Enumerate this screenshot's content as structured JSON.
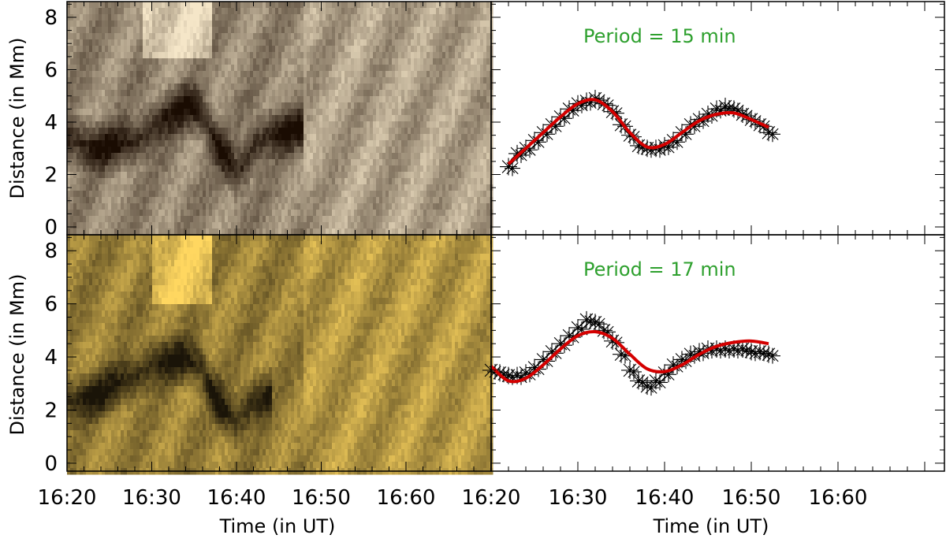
{
  "figure": {
    "xlabel": "Time (in UT)",
    "ylabel": "Distance (in Mm)",
    "x_ticks": [
      "16:20",
      "16:30",
      "16:40",
      "16:50",
      "16:60"
    ],
    "y_ticks": [
      "0",
      "2",
      "4",
      "6",
      "8"
    ],
    "colors": {
      "text": "#000000",
      "fit_line": "#d40000",
      "annotation": "#2ea02e",
      "marker": "#000000",
      "top_map_dark": "#1a0c02",
      "top_map_light": "#f5e6c8",
      "bottom_map_dark": "#1a1408",
      "bottom_map_light": "#ffd760"
    }
  },
  "chart_data": [
    {
      "type": "heatmap",
      "panel": "top-left",
      "colormap": "brown",
      "xlim": [
        0,
        50
      ],
      "ylim": [
        -0.3,
        8.6
      ],
      "xlabel": "",
      "ylabel": "Distance (in Mm)",
      "dark_track": [
        [
          0,
          3.3
        ],
        [
          4,
          3.0
        ],
        [
          8,
          3.2
        ],
        [
          10,
          3.8
        ],
        [
          12,
          4.3
        ],
        [
          14,
          4.6
        ],
        [
          16,
          4.3
        ],
        [
          17,
          3.6
        ],
        [
          18,
          3.0
        ],
        [
          19,
          2.5
        ],
        [
          20,
          2.0
        ],
        [
          21,
          2.4
        ],
        [
          22,
          3.1
        ],
        [
          24,
          3.6
        ],
        [
          28,
          3.7
        ]
      ],
      "bright_region": {
        "x": [
          9,
          17
        ],
        "y": [
          6.5,
          8.6
        ]
      }
    },
    {
      "type": "scatter",
      "panel": "top-right",
      "annotation": "Period = 15 min",
      "xlim": [
        0,
        50
      ],
      "ylim": [
        -0.3,
        8.6
      ],
      "xlabel": "",
      "x": [
        2,
        3,
        4,
        5,
        6,
        7,
        8,
        9,
        10,
        11,
        12,
        13,
        14,
        15,
        16,
        17,
        18,
        19,
        20,
        21,
        22,
        23,
        24,
        25,
        26,
        27,
        28,
        29,
        30,
        31,
        32
      ],
      "y": [
        2.3,
        2.8,
        3.0,
        3.3,
        3.6,
        3.9,
        4.2,
        4.5,
        4.7,
        4.8,
        4.9,
        4.7,
        4.4,
        3.9,
        3.5,
        3.1,
        3.0,
        3.0,
        3.1,
        3.3,
        3.6,
        3.9,
        4.1,
        4.3,
        4.5,
        4.6,
        4.5,
        4.3,
        4.1,
        3.9,
        3.6
      ],
      "fit": {
        "period_min": 15,
        "x": [
          2,
          4,
          6,
          8,
          10,
          12,
          14,
          16,
          18,
          20,
          22,
          24,
          26,
          28,
          30,
          32
        ],
        "y": [
          2.4,
          3.0,
          3.6,
          4.2,
          4.7,
          4.85,
          4.4,
          3.6,
          3.05,
          3.15,
          3.6,
          4.05,
          4.3,
          4.35,
          4.1,
          3.8
        ]
      }
    },
    {
      "type": "heatmap",
      "panel": "bottom-left",
      "colormap": "gold",
      "xlim": [
        0,
        50
      ],
      "ylim": [
        -0.3,
        8.6
      ],
      "xlabel": "Time (in UT)",
      "ylabel": "Distance (in Mm)",
      "dark_track": [
        [
          0,
          2.3
        ],
        [
          4,
          2.6
        ],
        [
          8,
          3.2
        ],
        [
          10,
          3.8
        ],
        [
          12,
          3.9
        ],
        [
          14,
          3.9
        ],
        [
          16,
          3.6
        ],
        [
          17,
          2.8
        ],
        [
          18,
          2.2
        ],
        [
          19,
          1.8
        ],
        [
          20,
          1.6
        ],
        [
          21,
          2.0
        ],
        [
          22,
          2.4
        ],
        [
          24,
          2.6
        ]
      ],
      "bright_region": {
        "x": [
          10,
          17
        ],
        "y": [
          5.9,
          8.6
        ]
      }
    },
    {
      "type": "scatter",
      "panel": "bottom-right",
      "annotation": "Period = 17 min",
      "xlim": [
        0,
        50
      ],
      "ylim": [
        -0.3,
        8.6
      ],
      "xlabel": "Time (in UT)",
      "x": [
        0,
        1,
        2,
        3,
        4,
        5,
        6,
        7,
        8,
        9,
        10,
        11,
        12,
        13,
        14,
        15,
        16,
        17,
        18,
        19,
        20,
        21,
        22,
        23,
        24,
        25,
        26,
        27,
        28,
        29,
        30,
        31,
        32
      ],
      "y": [
        3.5,
        3.4,
        3.3,
        3.3,
        3.4,
        3.6,
        3.9,
        4.2,
        4.5,
        4.8,
        5.1,
        5.4,
        5.3,
        5.0,
        4.6,
        4.1,
        3.5,
        3.1,
        2.9,
        3.1,
        3.4,
        3.7,
        3.9,
        4.1,
        4.2,
        4.3,
        4.3,
        4.3,
        4.3,
        4.3,
        4.2,
        4.2,
        4.1
      ],
      "fit": {
        "period_min": 17,
        "x": [
          0,
          2,
          4,
          6,
          8,
          10,
          12,
          14,
          16,
          18,
          20,
          22,
          24,
          26,
          28,
          30,
          32
        ],
        "y": [
          3.65,
          3.1,
          3.2,
          3.7,
          4.3,
          4.8,
          4.95,
          4.7,
          4.1,
          3.55,
          3.45,
          3.7,
          4.1,
          4.4,
          4.55,
          4.6,
          4.5
        ]
      }
    }
  ]
}
